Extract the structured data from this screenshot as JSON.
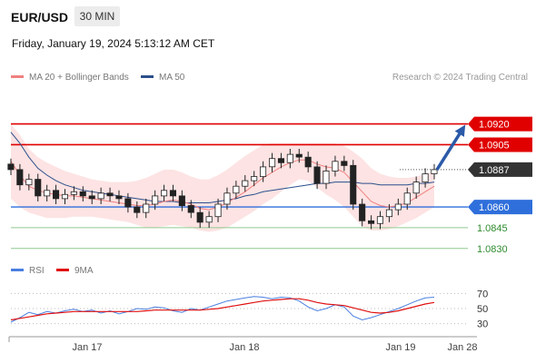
{
  "header": {
    "pair": "EUR/USD",
    "timeframe": "30 MIN",
    "datetime": "Friday, January 19, 2024 5:13:12 AM CET"
  },
  "legend": {
    "ma20_label": "MA 20 + Bollinger Bands",
    "ma20_color": "#f08080",
    "ma50_label": "MA 50",
    "ma50_color": "#2b4f8c"
  },
  "credit": "Research © 2024 Trading Central",
  "rsi_legend": {
    "rsi_label": "RSI",
    "rsi_color": "#4a7fe0",
    "ma_label": "9MA",
    "ma_color": "#e01010"
  },
  "chart_data": [
    {
      "type": "candlestick",
      "title": "EUR/USD 30 MIN",
      "ylim": [
        1.0822,
        1.0944
      ],
      "grid": false,
      "x_ticks": [
        "Jan 17",
        "Jan 18",
        "Jan 19",
        "Jan 28"
      ],
      "price_levels": [
        {
          "value": 1.092,
          "label": "1.0920",
          "kind": "resistance",
          "color": "#e00000"
        },
        {
          "value": 1.0905,
          "label": "1.0905",
          "kind": "resistance",
          "color": "#e00000"
        },
        {
          "value": 1.0887,
          "label": "1.0887",
          "kind": "current",
          "color": "#333333"
        },
        {
          "value": 1.086,
          "label": "1.0860",
          "kind": "pivot",
          "color": "#2f6fdb"
        },
        {
          "value": 1.0845,
          "label": "1.0845",
          "kind": "support",
          "color": "#2e8b2e"
        },
        {
          "value": 1.083,
          "label": "1.0830",
          "kind": "support",
          "color": "#2e8b2e"
        }
      ],
      "close_path": [
        1.0887,
        1.0876,
        1.088,
        1.0868,
        1.0872,
        1.0866,
        1.0869,
        1.0871,
        1.0868,
        1.0866,
        1.087,
        1.0868,
        1.0866,
        1.086,
        1.0856,
        1.0862,
        1.0868,
        1.0872,
        1.0868,
        1.0861,
        1.0856,
        1.0849,
        1.0853,
        1.0862,
        1.087,
        1.0875,
        1.0879,
        1.0882,
        1.0889,
        1.0895,
        1.0892,
        1.0898,
        1.0896,
        1.0889,
        1.0877,
        1.0886,
        1.0893,
        1.089,
        1.0862,
        1.085,
        1.0848,
        1.0853,
        1.0858,
        1.0862,
        1.087,
        1.0878,
        1.0884,
        1.0887
      ],
      "ma20": [
        1.0893,
        1.0883,
        1.0875,
        1.0872,
        1.087,
        1.0869,
        1.0868,
        1.0868,
        1.0867,
        1.0866,
        1.0865,
        1.0864,
        1.0863,
        1.0862,
        1.0861,
        1.0861,
        1.0862,
        1.0864,
        1.0865,
        1.0864,
        1.0862,
        1.0859,
        1.0858,
        1.086,
        1.0863,
        1.0867,
        1.0871,
        1.0876,
        1.0881,
        1.0885,
        1.0889,
        1.0892,
        1.0894,
        1.0894,
        1.0891,
        1.0889,
        1.0888,
        1.0885,
        1.0878,
        1.0871,
        1.0864,
        1.0861,
        1.086,
        1.0861,
        1.0863,
        1.0867,
        1.0871,
        1.0875
      ],
      "ma50": [
        1.0914,
        1.0906,
        1.0896,
        1.0888,
        1.0883,
        1.0879,
        1.0876,
        1.0874,
        1.0872,
        1.0871,
        1.087,
        1.0869,
        1.0868,
        1.0867,
        1.0866,
        1.0865,
        1.0864,
        1.0864,
        1.0864,
        1.0863,
        1.0863,
        1.0863,
        1.0863,
        1.0864,
        1.0865,
        1.0866,
        1.0868,
        1.0869,
        1.0871,
        1.0872,
        1.0873,
        1.0874,
        1.0875,
        1.0876,
        1.0877,
        1.0877,
        1.0878,
        1.0878,
        1.0878,
        1.0877,
        1.0877,
        1.0876,
        1.0876,
        1.0876,
        1.0876,
        1.0877,
        1.0877,
        1.0878
      ],
      "bb_upper": [
        1.092,
        1.0912,
        1.0902,
        1.0896,
        1.0892,
        1.0889,
        1.0886,
        1.0884,
        1.0882,
        1.088,
        1.0879,
        1.0878,
        1.0878,
        1.0878,
        1.0879,
        1.0881,
        1.0884,
        1.0887,
        1.0887,
        1.0885,
        1.0882,
        1.088,
        1.088,
        1.0883,
        1.0887,
        1.0892,
        1.0897,
        1.0901,
        1.0905,
        1.0906,
        1.0906,
        1.0906,
        1.0906,
        1.0906,
        1.0906,
        1.0906,
        1.0906,
        1.0904,
        1.09,
        1.0895,
        1.0888,
        1.0884,
        1.0882,
        1.0881,
        1.0881,
        1.0882,
        1.0884,
        1.0886
      ],
      "bb_lower": [
        1.0866,
        1.086,
        1.0856,
        1.0854,
        1.0852,
        1.0852,
        1.0852,
        1.0853,
        1.0853,
        1.0853,
        1.0852,
        1.0851,
        1.085,
        1.0849,
        1.0847,
        1.0845,
        1.0845,
        1.0846,
        1.0847,
        1.0846,
        1.0845,
        1.0843,
        1.0842,
        1.0843,
        1.0845,
        1.0849,
        1.0853,
        1.0857,
        1.0862,
        1.0866,
        1.0871,
        1.0876,
        1.088,
        1.0879,
        1.0874,
        1.0869,
        1.0865,
        1.086,
        1.0853,
        1.0846,
        1.0843,
        1.0843,
        1.0844,
        1.0846,
        1.0849,
        1.0852,
        1.0856,
        1.086
      ],
      "projection": {
        "from": 1.0887,
        "to": 1.092
      }
    },
    {
      "type": "line",
      "title": "RSI",
      "ylim": [
        20,
        80
      ],
      "y_ticks": [
        70,
        50,
        30
      ],
      "series": [
        {
          "name": "RSI",
          "values": [
            32,
            38,
            45,
            42,
            46,
            44,
            47,
            49,
            46,
            48,
            44,
            47,
            43,
            46,
            50,
            49,
            52,
            51,
            47,
            45,
            50,
            48,
            52,
            56,
            60,
            62,
            64,
            66,
            65,
            63,
            65,
            64,
            60,
            52,
            47,
            50,
            55,
            52,
            40,
            35,
            38,
            42,
            46,
            50,
            55,
            60,
            64,
            65
          ]
        },
        {
          "name": "9MA",
          "values": [
            35,
            37,
            39,
            41,
            43,
            44,
            45,
            46,
            46,
            46,
            46,
            46,
            46,
            46,
            46,
            47,
            48,
            48,
            48,
            48,
            48,
            48,
            49,
            50,
            52,
            54,
            56,
            58,
            60,
            61,
            62,
            63,
            63,
            61,
            58,
            56,
            55,
            54,
            51,
            48,
            45,
            44,
            45,
            47,
            50,
            53,
            56,
            58
          ]
        }
      ]
    }
  ]
}
